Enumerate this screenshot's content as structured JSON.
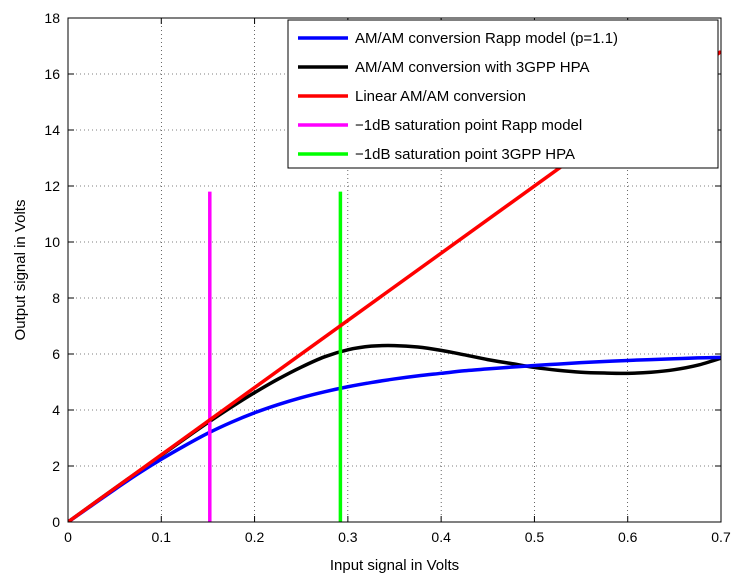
{
  "chart_data": {
    "type": "line",
    "title": "",
    "xlabel": "Input signal in Volts",
    "ylabel": "Output signal in Volts",
    "xlim": [
      0,
      0.7
    ],
    "ylim": [
      0,
      18
    ],
    "xticks": [
      0,
      0.1,
      0.2,
      0.3,
      0.4,
      0.5,
      0.6,
      0.7
    ],
    "yticks": [
      0,
      2,
      4,
      6,
      8,
      10,
      12,
      14,
      16,
      18
    ],
    "xtick_labels": [
      "0",
      "0.1",
      "0.2",
      "0.3",
      "0.4",
      "0.5",
      "0.6",
      "0.7"
    ],
    "ytick_labels": [
      "0",
      "2",
      "4",
      "6",
      "8",
      "10",
      "12",
      "14",
      "16",
      "18"
    ],
    "grid": true,
    "grid_style": "dotted",
    "legend_position": "top-right",
    "series": [
      {
        "name": "AM/AM conversion Rapp model (p=1.1)",
        "color": "#0000ff",
        "x": [
          0,
          0.025,
          0.05,
          0.075,
          0.1,
          0.125,
          0.15,
          0.175,
          0.2,
          0.225,
          0.25,
          0.275,
          0.3,
          0.325,
          0.35,
          0.375,
          0.4,
          0.425,
          0.45,
          0.475,
          0.5,
          0.525,
          0.55,
          0.575,
          0.6,
          0.625,
          0.65,
          0.675,
          0.7
        ],
        "y": [
          0,
          0.58,
          1.16,
          1.72,
          2.24,
          2.72,
          3.17,
          3.56,
          3.9,
          4.19,
          4.44,
          4.65,
          4.83,
          4.98,
          5.11,
          5.22,
          5.31,
          5.4,
          5.47,
          5.53,
          5.59,
          5.64,
          5.69,
          5.73,
          5.77,
          5.8,
          5.83,
          5.86,
          5.88
        ]
      },
      {
        "name": "AM/AM conversion with 3GPP HPA",
        "color": "#000000",
        "x": [
          0,
          0.025,
          0.05,
          0.075,
          0.1,
          0.125,
          0.15,
          0.175,
          0.2,
          0.225,
          0.25,
          0.275,
          0.3,
          0.325,
          0.35,
          0.375,
          0.4,
          0.425,
          0.45,
          0.475,
          0.5,
          0.525,
          0.55,
          0.575,
          0.6,
          0.625,
          0.65,
          0.675,
          0.7
        ],
        "y": [
          0,
          0.6,
          1.2,
          1.79,
          2.38,
          2.97,
          3.55,
          4.1,
          4.62,
          5.1,
          5.53,
          5.9,
          6.15,
          6.28,
          6.3,
          6.25,
          6.13,
          5.97,
          5.8,
          5.66,
          5.52,
          5.42,
          5.35,
          5.32,
          5.31,
          5.35,
          5.44,
          5.6,
          5.85
        ]
      },
      {
        "name": "Linear AM/AM conversion",
        "color": "#ff0000",
        "x": [
          0,
          0.7
        ],
        "y": [
          0,
          16.8
        ]
      },
      {
        "name": "−1dB saturation point Rapp model",
        "color": "#ff00ff",
        "x": [
          0.152,
          0.152
        ],
        "y": [
          0,
          11.8
        ]
      },
      {
        "name": "−1dB saturation point 3GPP HPA",
        "color": "#00ff00",
        "x": [
          0.292,
          0.292
        ],
        "y": [
          0,
          11.8
        ]
      }
    ]
  }
}
